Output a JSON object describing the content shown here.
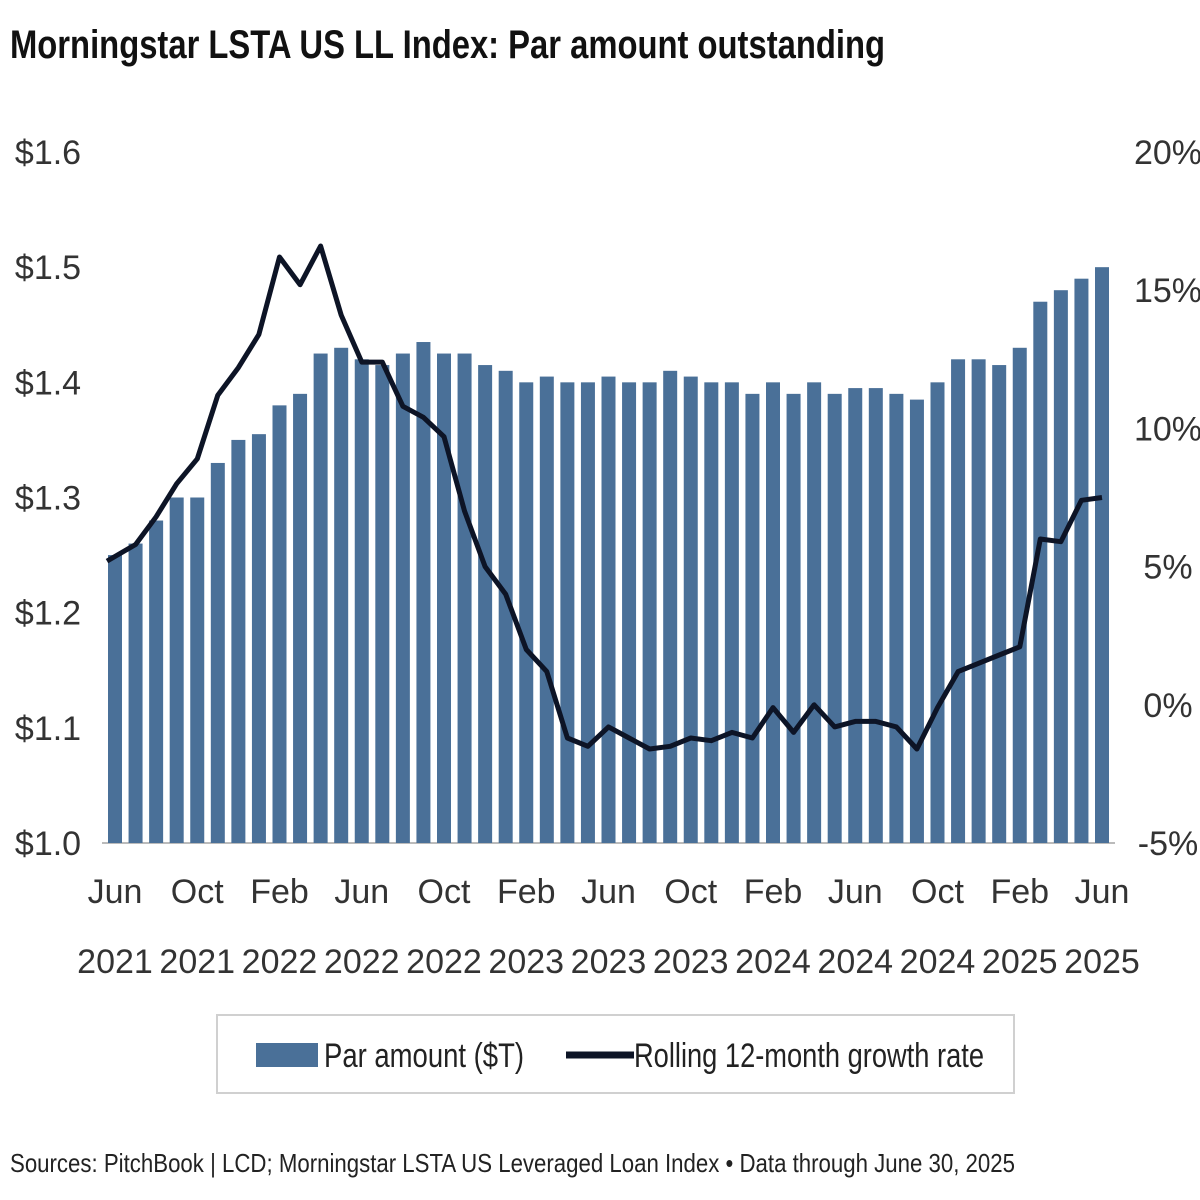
{
  "chart_data": {
    "type": "bar+line",
    "title": "Morningstar LSTA US LL Index: Par amount outstanding",
    "source": "Sources: PitchBook | LCD; Morningstar LSTA US Leveraged Loan Index • Data through June 30, 2025",
    "categories": [
      "Jun 2021",
      "Jul 2021",
      "Aug 2021",
      "Sep 2021",
      "Oct 2021",
      "Nov 2021",
      "Dec 2021",
      "Jan 2022",
      "Feb 2022",
      "Mar 2022",
      "Apr 2022",
      "May 2022",
      "Jun 2022",
      "Jul 2022",
      "Aug 2022",
      "Sep 2022",
      "Oct 2022",
      "Nov 2022",
      "Dec 2022",
      "Jan 2023",
      "Feb 2023",
      "Mar 2023",
      "Apr 2023",
      "May 2023",
      "Jun 2023",
      "Jul 2023",
      "Aug 2023",
      "Sep 2023",
      "Oct 2023",
      "Nov 2023",
      "Dec 2023",
      "Jan 2024",
      "Feb 2024",
      "Mar 2024",
      "Apr 2024",
      "May 2024",
      "Jun 2024",
      "Jul 2024",
      "Aug 2024",
      "Sep 2024",
      "Oct 2024",
      "Nov 2024",
      "Dec 2024",
      "Jan 2025",
      "Feb 2025",
      "Mar 2025",
      "Apr 2025",
      "May 2025",
      "Jun 2025"
    ],
    "x_tick_labels": [
      {
        "month": "Jun",
        "year": "2021",
        "index": 0
      },
      {
        "month": "Oct",
        "year": "2021",
        "index": 4
      },
      {
        "month": "Feb",
        "year": "2022",
        "index": 8
      },
      {
        "month": "Jun",
        "year": "2022",
        "index": 12
      },
      {
        "month": "Oct",
        "year": "2022",
        "index": 16
      },
      {
        "month": "Feb",
        "year": "2023",
        "index": 20
      },
      {
        "month": "Jun",
        "year": "2023",
        "index": 24
      },
      {
        "month": "Oct",
        "year": "2023",
        "index": 28
      },
      {
        "month": "Feb",
        "year": "2024",
        "index": 32
      },
      {
        "month": "Jun",
        "year": "2024",
        "index": 36
      },
      {
        "month": "Oct",
        "year": "2024",
        "index": 40
      },
      {
        "month": "Feb",
        "year": "2025",
        "index": 44
      },
      {
        "month": "Jun",
        "year": "2025",
        "index": 48
      }
    ],
    "series": [
      {
        "name": "Par amount ($T)",
        "type": "bar",
        "axis": "left",
        "color": "#4a7098",
        "values": [
          1.25,
          1.26,
          1.28,
          1.3,
          1.3,
          1.33,
          1.35,
          1.355,
          1.38,
          1.39,
          1.425,
          1.43,
          1.42,
          1.415,
          1.425,
          1.435,
          1.425,
          1.425,
          1.415,
          1.41,
          1.4,
          1.405,
          1.4,
          1.4,
          1.405,
          1.4,
          1.4,
          1.41,
          1.405,
          1.4,
          1.4,
          1.39,
          1.4,
          1.39,
          1.4,
          1.39,
          1.395,
          1.395,
          1.39,
          1.385,
          1.4,
          1.42,
          1.42,
          1.415,
          1.43,
          1.47,
          1.48,
          1.49,
          1.5
        ]
      },
      {
        "name": "Rolling 12-month growth rate",
        "type": "line",
        "axis": "right",
        "color": "#0d1426",
        "values": [
          5.2,
          5.8,
          6.8,
          8.0,
          8.9,
          11.2,
          12.2,
          13.4,
          16.2,
          15.2,
          16.6,
          14.1,
          12.4,
          12.4,
          10.8,
          10.4,
          9.7,
          7.0,
          5.0,
          4.0,
          2.0,
          1.2,
          -1.2,
          -1.5,
          -0.8,
          -1.2,
          -1.6,
          -1.5,
          -1.2,
          -1.3,
          -1.0,
          -1.2,
          -0.1,
          -1.0,
          0.0,
          -0.8,
          -0.6,
          -0.6,
          -0.8,
          -1.6,
          -0.1,
          1.2,
          1.5,
          1.8,
          2.1,
          6.0,
          5.9,
          7.4,
          7.5
        ]
      }
    ],
    "y_left": {
      "range": [
        1.0,
        1.6
      ],
      "ticks": [
        "$1.0",
        "$1.1",
        "$1.2",
        "$1.3",
        "$1.4",
        "$1.5",
        "$1.6"
      ]
    },
    "y_right": {
      "range": [
        -5,
        20
      ],
      "ticks": [
        "-5%",
        "0%",
        "5%",
        "10%",
        "15%",
        "20%"
      ]
    },
    "grid": false,
    "legend_position": "bottom"
  }
}
